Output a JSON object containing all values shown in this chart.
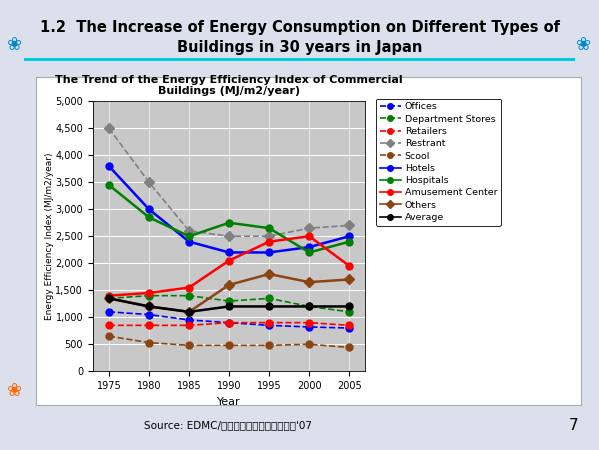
{
  "title_main": "1.2  The Increase of Energy Consumption on Different Types of\nBuildings in 30 years in Japan",
  "chart_title": "The Trend of the Energy Efficiency Index of Commercial\nBuildings (MJ/m2/year)",
  "xlabel": "Year",
  "ylabel": "Energy Efficiency Index (MJ/m2/year)",
  "source": "Source: EDMC/エネルギー・経済統計要覧'07",
  "years": [
    1975,
    1980,
    1985,
    1990,
    1995,
    2000,
    2005
  ],
  "series": {
    "Offices": {
      "color": "blue",
      "linestyle": "--",
      "marker": "o",
      "markersize": 5,
      "linewidth": 1.2,
      "values": [
        1100,
        1050,
        950,
        900,
        850,
        820,
        800
      ]
    },
    "Department Stores": {
      "color": "green",
      "linestyle": "--",
      "marker": "o",
      "markersize": 5,
      "linewidth": 1.2,
      "values": [
        1350,
        1400,
        1400,
        1300,
        1350,
        1200,
        1100
      ]
    },
    "Retailers": {
      "color": "red",
      "linestyle": "--",
      "marker": "o",
      "markersize": 5,
      "linewidth": 1.2,
      "values": [
        850,
        850,
        850,
        900,
        900,
        900,
        850
      ]
    },
    "Restrant": {
      "color": "#808080",
      "linestyle": "--",
      "marker": "D",
      "markersize": 5,
      "linewidth": 1.2,
      "values": [
        4500,
        3500,
        2600,
        2500,
        2500,
        2650,
        2700
      ]
    },
    "Scool": {
      "color": "#8B4513",
      "linestyle": "--",
      "marker": "o",
      "markersize": 5,
      "linewidth": 1.2,
      "values": [
        650,
        530,
        480,
        480,
        480,
        500,
        440
      ]
    },
    "Hotels": {
      "color": "blue",
      "linestyle": "-",
      "marker": "o",
      "markersize": 5,
      "linewidth": 1.8,
      "values": [
        3800,
        3000,
        2400,
        2200,
        2200,
        2300,
        2500
      ]
    },
    "Hospitals": {
      "color": "green",
      "linestyle": "-",
      "marker": "o",
      "markersize": 5,
      "linewidth": 1.8,
      "values": [
        3450,
        2850,
        2500,
        2750,
        2650,
        2200,
        2400
      ]
    },
    "Amusement Center": {
      "color": "red",
      "linestyle": "-",
      "marker": "o",
      "markersize": 5,
      "linewidth": 1.8,
      "values": [
        1400,
        1450,
        1550,
        2050,
        2400,
        2500,
        1950
      ]
    },
    "Others": {
      "color": "#8B4513",
      "linestyle": "-",
      "marker": "D",
      "markersize": 5,
      "linewidth": 1.8,
      "values": [
        1350,
        1200,
        1100,
        1600,
        1800,
        1650,
        1700
      ]
    },
    "Average": {
      "color": "black",
      "linestyle": "-",
      "marker": "o",
      "markersize": 5,
      "linewidth": 1.8,
      "values": [
        1350,
        1200,
        1100,
        1200,
        1200,
        1200,
        1200
      ]
    }
  },
  "ylim": [
    0,
    5000
  ],
  "yticks": [
    0,
    500,
    1000,
    1500,
    2000,
    2500,
    3000,
    3500,
    4000,
    4500,
    5000
  ],
  "bg_color": "#c8c8c8",
  "page_bg": "#dce0ec",
  "white_box_bg": "#ffffff",
  "page_number": "7",
  "cyan_line_color": "#00ccdd",
  "orange_flower_color": "#ff6600",
  "blue_flower_color": "#0088cc"
}
